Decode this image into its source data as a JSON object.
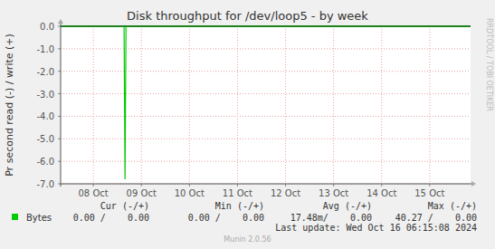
{
  "chart_data": {
    "type": "line",
    "title": "Disk throughput for /dev/loop5 - by week",
    "y_label": "Pr second read (-) / write (+)",
    "side_text": "RRDTOOL / TOBI OETIKER",
    "footer": "Last update: Wed Oct 16 06:15:08 2024",
    "version": "Munin 2.0.56",
    "xlim": [
      7.32,
      15.85
    ],
    "xticks": [
      {
        "value": 8,
        "label": "08 Oct"
      },
      {
        "value": 9,
        "label": "09 Oct"
      },
      {
        "value": 10,
        "label": "10 Oct"
      },
      {
        "value": 11,
        "label": "11 Oct"
      },
      {
        "value": 12,
        "label": "12 Oct"
      },
      {
        "value": 13,
        "label": "13 Oct"
      },
      {
        "value": 14,
        "label": "14 Oct"
      },
      {
        "value": 15,
        "label": "15 Oct"
      }
    ],
    "ylim": [
      -7,
      0
    ],
    "yticks": [
      {
        "value": 0,
        "label": "0.0"
      },
      {
        "value": -1,
        "label": "-1.0"
      },
      {
        "value": -2,
        "label": "-2.0"
      },
      {
        "value": -3,
        "label": "-3.0"
      },
      {
        "value": -4,
        "label": "-4.0"
      },
      {
        "value": -5,
        "label": "-5.0"
      },
      {
        "value": -6,
        "label": "-6.0"
      },
      {
        "value": -7,
        "label": "-7.0"
      }
    ],
    "grid": true,
    "stat_headers": [
      "Cur (-/+)",
      "Min (-/+)",
      "Avg (-/+)",
      "Max (-/+)"
    ],
    "series": [
      {
        "name": "Bytes",
        "color": "#00cc00",
        "x": [
          7.32,
          8.64,
          8.66,
          8.68,
          15.85
        ],
        "values": [
          0,
          0,
          -6.8,
          0,
          0
        ],
        "stats": [
          "0.00 /    0.00",
          "0.00 /    0.00",
          "17.48m/    0.00",
          "40.27 /    0.00"
        ]
      }
    ]
  }
}
